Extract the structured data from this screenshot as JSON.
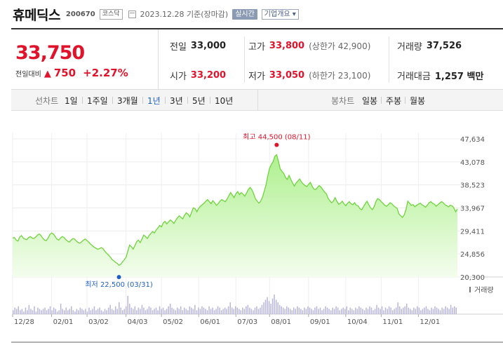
{
  "header": {
    "name": "휴메딕스",
    "code": "200670",
    "market": "코스닥",
    "date": "2023.12.28 기준(장마감)",
    "realtime_label": "실시간",
    "company_info_label": "기업개요 ▾"
  },
  "quote": {
    "price": "33,750",
    "change_label": "전일대비",
    "change_arrow": "▲",
    "change": "750",
    "change_pct": "+2.27%",
    "prev_close_label": "전일",
    "prev_close": "33,000",
    "high_label": "고가",
    "high": "33,800",
    "upper_limit": "(상한가 42,900)",
    "volume_label": "거래량",
    "volume": "37,526",
    "open_label": "시가",
    "open": "33,200",
    "low_label": "저가",
    "low": "33,050",
    "lower_limit": "(하한가 23,100)",
    "amount_label": "거래대금",
    "amount": "1,257 백만"
  },
  "toolbar": {
    "line_label": "선차트",
    "periods": [
      "1일",
      "1주일",
      "3개월",
      "1년",
      "3년",
      "5년",
      "10년"
    ],
    "active_period": "1년",
    "candle_label": "봉차트",
    "candles": [
      "일봉",
      "주봉",
      "월봉"
    ]
  },
  "chart_data": {
    "type": "area",
    "y_ticks": [
      "47,634",
      "43,078",
      "38,523",
      "33,967",
      "29,411",
      "24,856",
      "20,300"
    ],
    "ylim": [
      20300,
      47634
    ],
    "x_ticks": [
      "12/28",
      "02/01",
      "03/02",
      "04/03",
      "05/02",
      "06/01",
      "07/03",
      "08/01",
      "09/01",
      "10/04",
      "11/01",
      "12/01"
    ],
    "max_label": "최고 44,500 (08/11)",
    "min_label": "최저 22,500 (03/31)",
    "max": {
      "date": "08/11",
      "value": 44500
    },
    "min": {
      "date": "03/31",
      "value": 22500
    },
    "volume_label": "거래량",
    "price_series": [
      28000,
      28100,
      27600,
      27400,
      28200,
      28500,
      28000,
      27800,
      27700,
      28100,
      28300,
      28000,
      27900,
      28200,
      28600,
      28800,
      28500,
      28000,
      27600,
      27500,
      28000,
      28700,
      29000,
      28800,
      28300,
      27800,
      27600,
      28000,
      28300,
      28100,
      27700,
      27400,
      27200,
      27600,
      27900,
      27800,
      27400,
      27100,
      27000,
      27300,
      27600,
      27800,
      27500,
      27200,
      26800,
      26500,
      26200,
      26000,
      25800,
      25900,
      26100,
      25900,
      25400,
      25000,
      24700,
      24300,
      23800,
      23500,
      23200,
      23000,
      22600,
      22800,
      23300,
      23700,
      24200,
      25400,
      26600,
      26300,
      25800,
      26500,
      27300,
      27600,
      27100,
      27800,
      28600,
      28300,
      27900,
      28500,
      28900,
      29300,
      29000,
      29600,
      30000,
      30500,
      30200,
      31000,
      31300,
      30800,
      31200,
      31600,
      31300,
      30900,
      31500,
      32000,
      32400,
      32100,
      31800,
      32500,
      33000,
      32700,
      32200,
      33100,
      34000,
      33800,
      33200,
      33900,
      34300,
      34600,
      34900,
      35300,
      35600,
      35200,
      34800,
      35400,
      35000,
      34500,
      34800,
      35300,
      35600,
      35400,
      35200,
      35700,
      36400,
      37000,
      36500,
      36000,
      36800,
      37200,
      36600,
      37000,
      36700,
      36300,
      36900,
      37600,
      38000,
      37600,
      36800,
      35800,
      35300,
      34900,
      35300,
      36100,
      37300,
      38500,
      40300,
      41800,
      42600,
      43100,
      44200,
      44500,
      43200,
      41700,
      41200,
      40800,
      40000,
      39600,
      40400,
      39600,
      38900,
      38300,
      38900,
      39300,
      39700,
      39100,
      38700,
      38400,
      38200,
      38600,
      39000,
      38300,
      37700,
      37600,
      38000,
      38400,
      38100,
      37600,
      37100,
      36800,
      35900,
      35400,
      35000,
      35300,
      36000,
      35300,
      34700,
      34900,
      35300,
      34800,
      34400,
      34900,
      35200,
      34800,
      34600,
      35000,
      34500,
      34400,
      33800,
      33600,
      34200,
      34800,
      35300,
      34600,
      34000,
      33600,
      34200,
      35200,
      35800,
      35600,
      35200,
      34900,
      34500,
      34300,
      34600,
      35000,
      34800,
      34400,
      34100,
      33900,
      32800,
      32400,
      32100,
      32600,
      33600,
      35300,
      34900,
      34500,
      34600,
      34200,
      34500,
      34700,
      34900,
      34600,
      34400,
      34100,
      34500,
      35000,
      35200,
      34900,
      34700,
      34300,
      34600,
      34900,
      35200,
      35000,
      34600,
      34400,
      34200,
      34500,
      34400,
      34000,
      33200,
      33750
    ],
    "volume_series": [
      3,
      5,
      4,
      6,
      3,
      4,
      2,
      5,
      3,
      7,
      4,
      3,
      6,
      2,
      5,
      4,
      3,
      4,
      5,
      3,
      4,
      6,
      3,
      5,
      4,
      2,
      3,
      8,
      4,
      3,
      5,
      3,
      4,
      6,
      3,
      2,
      4,
      3,
      5,
      4,
      3,
      4,
      2,
      5,
      3,
      4,
      6,
      3,
      4,
      5,
      3,
      2,
      4,
      3,
      5,
      7,
      4,
      3,
      6,
      4,
      9,
      5,
      3,
      4,
      6,
      14,
      8,
      5,
      4,
      6,
      3,
      5,
      4,
      7,
      5,
      3,
      4,
      6,
      5,
      3,
      4,
      5,
      3,
      6,
      4,
      5,
      3,
      4,
      6,
      8,
      5,
      4,
      3,
      5,
      4,
      6,
      3,
      5,
      4,
      3,
      6,
      5,
      4,
      7,
      3,
      5,
      4,
      6,
      5,
      4,
      3,
      6,
      4,
      5,
      3,
      4,
      6,
      5,
      3,
      4,
      5,
      4,
      6,
      9,
      5,
      4,
      6,
      5,
      4,
      3,
      5,
      4,
      6,
      7,
      5,
      4,
      3,
      5,
      6,
      4,
      5,
      7,
      9,
      11,
      13,
      10,
      8,
      12,
      15,
      11,
      9,
      7,
      6,
      5,
      4,
      6,
      5,
      4,
      3,
      5,
      4,
      6,
      5,
      4,
      3,
      5,
      4,
      6,
      5,
      4,
      3,
      5,
      6,
      4,
      5,
      3,
      4,
      6,
      5,
      4,
      3,
      5,
      4,
      6,
      5,
      3,
      4,
      5,
      4,
      6,
      3,
      5,
      4,
      3,
      5,
      4,
      6,
      5,
      4,
      3,
      5,
      4,
      6,
      5,
      3,
      4,
      7,
      5,
      4,
      6,
      3,
      5,
      4,
      6,
      5,
      3,
      4,
      5,
      9,
      6,
      4,
      5,
      6,
      8,
      5,
      4,
      3,
      5,
      4,
      6,
      5,
      3,
      4,
      5,
      6,
      4,
      3,
      5,
      4,
      6,
      5,
      4,
      3,
      5,
      4,
      6,
      5,
      4,
      7,
      5,
      6,
      5
    ]
  }
}
